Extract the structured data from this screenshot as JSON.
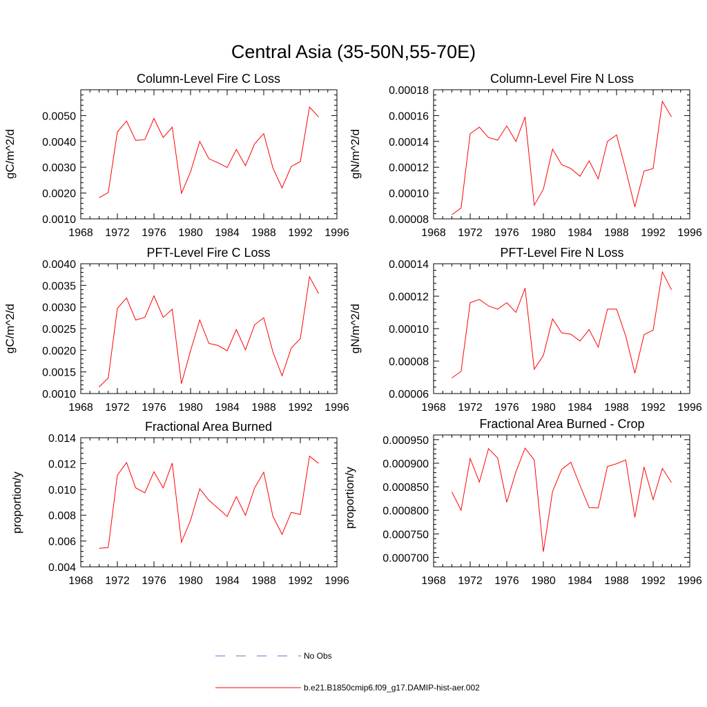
{
  "figure": {
    "title": "Central Asia (35-50N,55-70E)"
  },
  "legend": [
    {
      "label": "No Obs",
      "color": "#6a6ad0",
      "dash": "dashed"
    },
    {
      "label": "b.e21.B1850cmip6.f09_g17.DAMIP-hist-aer.002",
      "color": "#ff0000",
      "dash": "solid"
    }
  ],
  "chart_data": [
    {
      "type": "line",
      "title": "Column-Level Fire C Loss",
      "ylabel": "gC/m^2/d",
      "xlim": [
        1968,
        1996
      ],
      "xticks": [
        "1968",
        "1972",
        "1976",
        "1980",
        "1984",
        "1988",
        "1992",
        "1996"
      ],
      "ylim": [
        0.001,
        0.006
      ],
      "yticks": [
        "0.0010",
        "0.0020",
        "0.0030",
        "0.0040",
        "0.0050"
      ],
      "ytick_values": [
        0.001,
        0.002,
        0.003,
        0.004,
        0.005
      ],
      "series": [
        {
          "name": "b.e21.B1850cmip6.f09_g17.DAMIP-hist-aer.002",
          "color": "#ff0000",
          "x": [
            1970,
            1971,
            1972,
            1973,
            1974,
            1975,
            1976,
            1977,
            1978,
            1979,
            1980,
            1981,
            1982,
            1983,
            1984,
            1985,
            1986,
            1987,
            1988,
            1989,
            1990,
            1991,
            1992,
            1993,
            1994
          ],
          "values": [
            0.00182,
            0.00202,
            0.00437,
            0.00479,
            0.00404,
            0.00407,
            0.00489,
            0.00415,
            0.00455,
            0.00199,
            0.00282,
            0.004,
            0.00333,
            0.00317,
            0.00299,
            0.00369,
            0.00306,
            0.00391,
            0.0043,
            0.00297,
            0.0022,
            0.00303,
            0.00322,
            0.00533,
            0.00495
          ]
        }
      ]
    },
    {
      "type": "line",
      "title": "Column-Level Fire N Loss",
      "ylabel": "gN/m^2/d",
      "xlim": [
        1968,
        1996
      ],
      "xticks": [
        "1968",
        "1972",
        "1976",
        "1980",
        "1984",
        "1988",
        "1992",
        "1996"
      ],
      "ylim": [
        8e-05,
        0.00018
      ],
      "yticks": [
        "0.00008",
        "0.00010",
        "0.00012",
        "0.00014",
        "0.00016",
        "0.00018"
      ],
      "ytick_values": [
        8e-05,
        0.0001,
        0.00012,
        0.00014,
        0.00016,
        0.00018
      ],
      "series": [
        {
          "name": "b.e21.B1850cmip6.f09_g17.DAMIP-hist-aer.002",
          "color": "#ff0000",
          "x": [
            1970,
            1971,
            1972,
            1973,
            1974,
            1975,
            1976,
            1977,
            1978,
            1979,
            1980,
            1981,
            1982,
            1983,
            1984,
            1985,
            1986,
            1987,
            1988,
            1989,
            1990,
            1991,
            1992,
            1993,
            1994
          ],
          "values": [
            8.32e-05,
            8.84e-05,
            0.000146,
            0.000151,
            0.000143,
            0.000141,
            0.000152,
            0.00014,
            0.000159,
            9.06e-05,
            0.000103,
            0.000134,
            0.000122,
            0.000119,
            0.000113,
            0.000125,
            0.000111,
            0.00014,
            0.000145,
            0.000118,
            8.93e-05,
            0.000117,
            0.000119,
            0.000171,
            0.000159
          ]
        }
      ]
    },
    {
      "type": "line",
      "title": "PFT-Level Fire C Loss",
      "ylabel": "gC/m^2/d",
      "xlim": [
        1968,
        1996
      ],
      "xticks": [
        "1968",
        "1972",
        "1976",
        "1980",
        "1984",
        "1988",
        "1992",
        "1996"
      ],
      "ylim": [
        0.001,
        0.004
      ],
      "yticks": [
        "0.0010",
        "0.0015",
        "0.0020",
        "0.0025",
        "0.0030",
        "0.0035",
        "0.0040"
      ],
      "ytick_values": [
        0.001,
        0.0015,
        0.002,
        0.0025,
        0.003,
        0.0035,
        0.004
      ],
      "series": [
        {
          "name": "b.e21.B1850cmip6.f09_g17.DAMIP-hist-aer.002",
          "color": "#ff0000",
          "x": [
            1970,
            1971,
            1972,
            1973,
            1974,
            1975,
            1976,
            1977,
            1978,
            1979,
            1980,
            1981,
            1982,
            1983,
            1984,
            1985,
            1986,
            1987,
            1988,
            1989,
            1990,
            1991,
            1992,
            1993,
            1994
          ],
          "values": [
            0.00115,
            0.00136,
            0.00297,
            0.00321,
            0.0027,
            0.00276,
            0.00326,
            0.00276,
            0.00295,
            0.00123,
            0.00199,
            0.0027,
            0.00216,
            0.00211,
            0.00199,
            0.00248,
            0.00201,
            0.00259,
            0.00275,
            0.00196,
            0.00141,
            0.00205,
            0.00227,
            0.0037,
            0.00331
          ]
        }
      ]
    },
    {
      "type": "line",
      "title": "PFT-Level Fire N Loss",
      "ylabel": "gN/m^2/d",
      "xlim": [
        1968,
        1996
      ],
      "xticks": [
        "1968",
        "1972",
        "1976",
        "1980",
        "1984",
        "1988",
        "1992",
        "1996"
      ],
      "ylim": [
        6e-05,
        0.00014
      ],
      "yticks": [
        "0.00006",
        "0.00008",
        "0.00010",
        "0.00012",
        "0.00014"
      ],
      "ytick_values": [
        6e-05,
        8e-05,
        0.0001,
        0.00012,
        0.00014
      ],
      "series": [
        {
          "name": "b.e21.B1850cmip6.f09_g17.DAMIP-hist-aer.002",
          "color": "#ff0000",
          "x": [
            1970,
            1971,
            1972,
            1973,
            1974,
            1975,
            1976,
            1977,
            1978,
            1979,
            1980,
            1981,
            1982,
            1983,
            1984,
            1985,
            1986,
            1987,
            1988,
            1989,
            1990,
            1991,
            1992,
            1993,
            1994
          ],
          "values": [
            6.96e-05,
            7.36e-05,
            0.000116,
            0.000118,
            0.000114,
            0.000112,
            0.000116,
            0.00011,
            0.000125,
            7.5e-05,
            8.35e-05,
            0.000106,
            9.74e-05,
            9.66e-05,
            9.24e-05,
            9.94e-05,
            8.86e-05,
            0.000112,
            0.000112,
            9.55e-05,
            7.25e-05,
            9.63e-05,
            9.91e-05,
            0.000135,
            0.000124
          ]
        }
      ]
    },
    {
      "type": "line",
      "title": "Fractional Area Burned",
      "ylabel": "proportion/y",
      "xlim": [
        1968,
        1996
      ],
      "xticks": [
        "1968",
        "1972",
        "1976",
        "1980",
        "1984",
        "1988",
        "1992",
        "1996"
      ],
      "ylim": [
        0.004,
        0.014
      ],
      "yticks": [
        "0.004",
        "0.006",
        "0.008",
        "0.010",
        "0.012",
        "0.014"
      ],
      "ytick_values": [
        0.004,
        0.006,
        0.008,
        0.01,
        0.012,
        0.014
      ],
      "series": [
        {
          "name": "b.e21.B1850cmip6.f09_g17.DAMIP-hist-aer.002",
          "color": "#ff0000",
          "x": [
            1970,
            1971,
            1972,
            1973,
            1974,
            1975,
            1976,
            1977,
            1978,
            1979,
            1980,
            1981,
            1982,
            1983,
            1984,
            1985,
            1986,
            1987,
            1988,
            1989,
            1990,
            1991,
            1992,
            1993,
            1994
          ],
          "values": [
            0.00543,
            0.0055,
            0.0111,
            0.01208,
            0.01012,
            0.00974,
            0.01137,
            0.01011,
            0.01204,
            0.00591,
            0.0076,
            0.01005,
            0.00916,
            0.00854,
            0.0079,
            0.00944,
            0.00799,
            0.01012,
            0.01133,
            0.00791,
            0.00652,
            0.00822,
            0.00806,
            0.01257,
            0.01201
          ]
        }
      ]
    },
    {
      "type": "line",
      "title": "Fractional Area Burned - Crop",
      "ylabel": "proportion/y",
      "xlim": [
        1968,
        1996
      ],
      "xticks": [
        "1968",
        "1972",
        "1976",
        "1980",
        "1984",
        "1988",
        "1992",
        "1996"
      ],
      "ylim": [
        0.00068,
        0.00096
      ],
      "yticks": [
        "0.000700",
        "0.000750",
        "0.000800",
        "0.000850",
        "0.000900",
        "0.000950"
      ],
      "ytick_values": [
        0.0007,
        0.00075,
        0.0008,
        0.00085,
        0.0009,
        0.00095
      ],
      "series": [
        {
          "name": "b.e21.B1850cmip6.f09_g17.DAMIP-hist-aer.002",
          "color": "#ff0000",
          "x": [
            1970,
            1971,
            1972,
            1973,
            1974,
            1975,
            1976,
            1977,
            1978,
            1979,
            1980,
            1981,
            1982,
            1983,
            1984,
            1985,
            1986,
            1987,
            1988,
            1989,
            1990,
            1991,
            1992,
            1993,
            1994
          ],
          "values": [
            0.000839,
            0.0008,
            0.00091,
            0.00086,
            0.000931,
            0.000911,
            0.000817,
            0.000882,
            0.000932,
            0.000907,
            0.000712,
            0.00084,
            0.000887,
            0.000902,
            0.000853,
            0.000806,
            0.000805,
            0.000893,
            0.000899,
            0.000907,
            0.000785,
            0.000892,
            0.000823,
            0.000889,
            0.000859
          ]
        }
      ]
    }
  ]
}
